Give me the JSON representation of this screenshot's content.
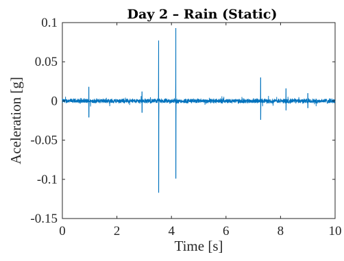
{
  "chart_data": {
    "type": "line",
    "title": "Day 2 – Rain (Static)",
    "xlabel": "Time [s]",
    "ylabel": "Aceleration [g]",
    "xlim": [
      0,
      10
    ],
    "ylim": [
      -0.15,
      0.1
    ],
    "x_ticks": [
      0,
      2,
      4,
      6,
      8,
      10
    ],
    "x_tick_labels": [
      "0",
      "2",
      "4",
      "6",
      "8",
      "10"
    ],
    "y_ticks": [
      0.1,
      0.05,
      0,
      -0.05,
      -0.1,
      -0.15
    ],
    "y_tick_labels": [
      "0.1",
      "0.05",
      "0",
      "-0.05",
      "-0.1",
      "-0.15"
    ],
    "grid": false,
    "series": [
      {
        "color": "#0072BD",
        "baseline_noise_amplitude": 0.003,
        "spikes": [
          {
            "x": 0.97,
            "max": 0.018,
            "min": -0.021
          },
          {
            "x": 2.92,
            "max": 0.012,
            "min": -0.015
          },
          {
            "x": 3.53,
            "max": 0.077,
            "min": -0.117
          },
          {
            "x": 4.16,
            "max": 0.093,
            "min": -0.099
          },
          {
            "x": 7.27,
            "max": 0.03,
            "min": -0.024
          },
          {
            "x": 8.2,
            "max": 0.016,
            "min": -0.012
          },
          {
            "x": 9.0,
            "max": 0.01,
            "min": -0.009
          }
        ]
      }
    ]
  }
}
